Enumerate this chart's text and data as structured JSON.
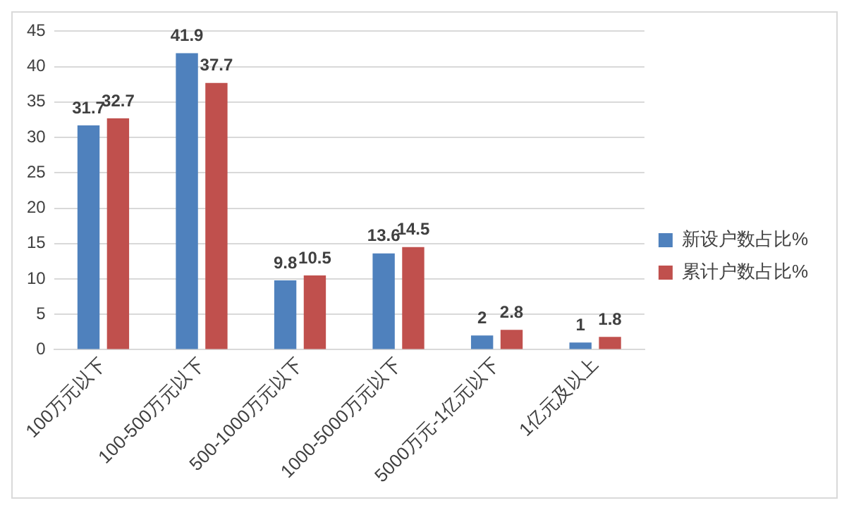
{
  "chart_data": {
    "type": "bar",
    "categories": [
      "100万元以下",
      "100-500万元以下",
      "500-1000万元以下",
      "1000-5000万元以下",
      "5000万元-1亿元以下",
      "1亿元及以上"
    ],
    "series": [
      {
        "name": "新设户数占比%",
        "color": "#4f81bd",
        "values": [
          31.7,
          41.9,
          9.8,
          13.6,
          2,
          1
        ]
      },
      {
        "name": "累计户数占比%",
        "color": "#c0504d",
        "values": [
          32.7,
          37.7,
          10.5,
          14.5,
          2.8,
          1.8
        ]
      }
    ],
    "ylim": [
      0,
      45
    ],
    "yticks": [
      0,
      5,
      10,
      15,
      20,
      25,
      30,
      35,
      40,
      45
    ],
    "grid": "y",
    "legend": "right",
    "data_labels": true
  }
}
